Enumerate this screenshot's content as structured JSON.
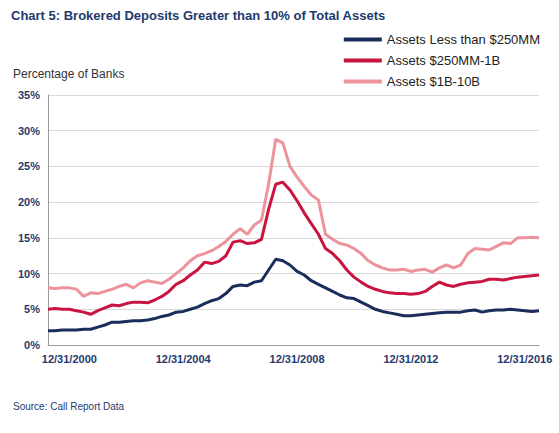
{
  "chart_data": {
    "type": "line",
    "title": "Chart 5: Brokered Deposits Greater than 10% of Total Assets",
    "y_label": "Percentage of Banks",
    "source": "Source: Call Report Data",
    "categories": [
      null,
      null,
      null,
      "12/31/2000",
      null,
      null,
      null,
      null,
      null,
      null,
      null,
      null,
      null,
      null,
      null,
      null,
      null,
      null,
      null,
      "12/31/2004",
      null,
      null,
      null,
      null,
      null,
      null,
      null,
      null,
      null,
      null,
      null,
      null,
      null,
      null,
      null,
      "12/31/2008",
      null,
      null,
      null,
      null,
      null,
      null,
      null,
      null,
      null,
      null,
      null,
      null,
      null,
      null,
      null,
      "12/31/2012",
      null,
      null,
      null,
      null,
      null,
      null,
      null,
      null,
      null,
      null,
      null,
      null,
      null,
      null,
      null,
      "12/31/2016",
      null,
      null
    ],
    "series": [
      {
        "name": "Assets Less than $250MM",
        "color": "#1b2d5b",
        "values": [
          2.0,
          2.0,
          2.1,
          2.1,
          2.1,
          2.2,
          2.2,
          2.5,
          2.8,
          3.2,
          3.2,
          3.3,
          3.4,
          3.4,
          3.5,
          3.7,
          4.0,
          4.2,
          4.6,
          4.7,
          5.0,
          5.3,
          5.8,
          6.2,
          6.5,
          7.2,
          8.2,
          8.4,
          8.3,
          8.8,
          9.0,
          10.5,
          12.0,
          11.8,
          11.2,
          10.3,
          9.8,
          9.0,
          8.5,
          8.0,
          7.5,
          7.0,
          6.6,
          6.5,
          6.0,
          5.5,
          5.0,
          4.7,
          4.5,
          4.3,
          4.1,
          4.1,
          4.2,
          4.3,
          4.4,
          4.5,
          4.6,
          4.6,
          4.6,
          4.8,
          4.9,
          4.6,
          4.8,
          4.9,
          4.9,
          5.0,
          4.9,
          4.8,
          4.7,
          4.8
        ]
      },
      {
        "name": "Assets $250MM-1B",
        "color": "#c8143f",
        "values": [
          5.0,
          5.1,
          5.0,
          5.0,
          4.8,
          4.6,
          4.3,
          4.8,
          5.2,
          5.6,
          5.5,
          5.8,
          6.0,
          6.0,
          5.9,
          6.3,
          6.8,
          7.5,
          8.5,
          9.0,
          9.8,
          10.5,
          11.6,
          11.4,
          11.7,
          12.5,
          14.4,
          14.6,
          14.2,
          14.3,
          14.8,
          19.0,
          22.5,
          22.8,
          21.7,
          20.2,
          18.5,
          17.0,
          15.5,
          13.5,
          12.8,
          11.8,
          10.5,
          9.5,
          8.8,
          8.2,
          7.8,
          7.5,
          7.3,
          7.2,
          7.2,
          7.1,
          7.2,
          7.5,
          8.2,
          8.8,
          8.4,
          8.2,
          8.5,
          8.7,
          8.8,
          8.9,
          9.2,
          9.2,
          9.1,
          9.3,
          9.5,
          9.6,
          9.7,
          9.8
        ]
      },
      {
        "name": "Assets $1B-10B",
        "color": "#ec939c",
        "values": [
          8.0,
          7.9,
          8.0,
          8.0,
          7.8,
          6.8,
          7.3,
          7.2,
          7.5,
          7.8,
          8.2,
          8.5,
          8.0,
          8.7,
          9.0,
          8.8,
          8.6,
          9.2,
          10.0,
          10.8,
          11.8,
          12.5,
          12.8,
          13.2,
          13.8,
          14.5,
          15.5,
          16.3,
          15.5,
          16.8,
          17.5,
          22.5,
          28.8,
          28.3,
          25.0,
          23.5,
          22.2,
          21.0,
          20.3,
          15.5,
          14.8,
          14.2,
          14.0,
          13.5,
          12.8,
          11.8,
          11.2,
          10.8,
          10.5,
          10.5,
          10.6,
          10.3,
          10.5,
          10.6,
          10.2,
          10.8,
          11.2,
          10.8,
          11.2,
          12.8,
          13.5,
          13.4,
          13.3,
          13.8,
          14.3,
          14.2,
          15.0,
          15.0,
          15.1,
          15.0
        ]
      }
    ],
    "ylim": [
      0,
      35
    ],
    "yticks": [
      {
        "value": 0,
        "label": "0%"
      },
      {
        "value": 5,
        "label": "5%"
      },
      {
        "value": 10,
        "label": "10%"
      },
      {
        "value": 15,
        "label": "15%"
      },
      {
        "value": 20,
        "label": "20%"
      },
      {
        "value": 25,
        "label": "25%"
      },
      {
        "value": 30,
        "label": "30%"
      },
      {
        "value": 35,
        "label": "35%"
      }
    ],
    "grid": true,
    "legend": "top-right"
  }
}
